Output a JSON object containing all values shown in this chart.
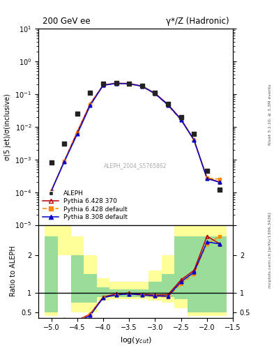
{
  "title_left": "200 GeV ee",
  "title_right": "γ*/Z (Hadronic)",
  "ylabel_main": "σ(5 jet)/σ(inclusive)",
  "ylabel_ratio": "Ratio to ALEPH",
  "xlabel": "log(y$_{cut}$)",
  "watermark": "ALEPH_2004_S5765862",
  "right_label": "Rivet 3.1.10, ≥ 3.3M events",
  "right_label2": "mcplots.cern.ch [arXiv:1306.3436]",
  "aleph_x": [
    -5.0,
    -4.75,
    -4.5,
    -4.25,
    -4.0,
    -3.75,
    -3.5,
    -3.25,
    -3.0,
    -2.75,
    -2.5,
    -2.25,
    -2.0,
    -1.75
  ],
  "aleph_y": [
    0.0008,
    0.003,
    0.025,
    0.11,
    0.21,
    0.22,
    0.21,
    0.18,
    0.11,
    0.05,
    0.02,
    0.006,
    0.00045,
    0.00012
  ],
  "py6_370_x": [
    -5.0,
    -4.75,
    -4.5,
    -4.25,
    -4.0,
    -3.75,
    -3.5,
    -3.25,
    -3.0,
    -2.75,
    -2.5,
    -2.25,
    -2.0,
    -1.75
  ],
  "py6_370_y": [
    0.00011,
    0.0009,
    0.007,
    0.05,
    0.19,
    0.215,
    0.21,
    0.175,
    0.105,
    0.048,
    0.017,
    0.004,
    0.00028,
    0.0002
  ],
  "py6_def_x": [
    -5.0,
    -4.75,
    -4.5,
    -4.25,
    -4.0,
    -3.75,
    -3.5,
    -3.25,
    -3.0,
    -2.75,
    -2.5,
    -2.25,
    -2.0,
    -1.75
  ],
  "py6_def_y": [
    0.00011,
    0.0009,
    0.0065,
    0.048,
    0.185,
    0.21,
    0.205,
    0.17,
    0.1,
    0.045,
    0.016,
    0.0038,
    0.00027,
    0.00025
  ],
  "py8_def_x": [
    -5.0,
    -4.75,
    -4.5,
    -4.25,
    -4.0,
    -3.75,
    -3.5,
    -3.25,
    -3.0,
    -2.75,
    -2.5,
    -2.25,
    -2.0,
    -1.75
  ],
  "py8_def_y": [
    0.00011,
    0.00085,
    0.006,
    0.045,
    0.185,
    0.21,
    0.205,
    0.172,
    0.102,
    0.046,
    0.0165,
    0.0039,
    0.00026,
    0.0002
  ],
  "ratio_x": [
    -5.0,
    -4.75,
    -4.5,
    -4.25,
    -4.0,
    -3.75,
    -3.5,
    -3.25,
    -3.0,
    -2.75,
    -2.5,
    -2.25,
    -2.0,
    -1.75
  ],
  "ratio_py6_370": [
    0.14,
    0.3,
    0.28,
    0.45,
    0.9,
    0.98,
    1.0,
    0.97,
    0.95,
    0.96,
    1.35,
    1.6,
    2.5,
    2.3
  ],
  "ratio_py6_def": [
    0.14,
    0.3,
    0.26,
    0.44,
    0.88,
    0.955,
    0.976,
    0.944,
    0.909,
    0.9,
    1.25,
    1.5,
    2.3,
    2.5
  ],
  "ratio_py8_def": [
    0.14,
    0.28,
    0.24,
    0.41,
    0.88,
    0.955,
    0.976,
    0.956,
    0.927,
    0.92,
    1.3,
    1.55,
    2.35,
    2.3
  ],
  "band_x_edges": [
    -5.125,
    -4.875,
    -4.625,
    -4.375,
    -4.125,
    -3.875,
    -3.625,
    -3.375,
    -3.125,
    -2.875,
    -2.625,
    -2.375,
    -2.125,
    -1.875,
    -1.625
  ],
  "green_lo": [
    0.5,
    2.5,
    0.75,
    0.75,
    0.9,
    0.9,
    0.9,
    0.9,
    0.9,
    0.9,
    0.85,
    0.5,
    0.5,
    0.5
  ],
  "green_hi": [
    2.5,
    2.5,
    2.0,
    1.5,
    1.15,
    1.1,
    1.1,
    1.1,
    1.3,
    1.5,
    2.5,
    2.5,
    2.5,
    2.5
  ],
  "yellow_lo": [
    0.4,
    2.0,
    0.5,
    0.5,
    0.8,
    0.85,
    0.85,
    0.85,
    0.8,
    0.75,
    0.6,
    0.4,
    0.4,
    0.4
  ],
  "yellow_hi": [
    3.0,
    3.0,
    2.5,
    2.0,
    1.4,
    1.3,
    1.3,
    1.3,
    1.6,
    2.0,
    3.0,
    3.0,
    3.0,
    3.0
  ],
  "color_aleph": "#222222",
  "color_py6_370": "#bb0000",
  "color_py6_def": "#ff8800",
  "color_py8_def": "#0000cc",
  "xlim": [
    -5.25,
    -1.5
  ],
  "ylim_main": [
    1e-05,
    10
  ],
  "ylim_ratio": [
    0.35,
    2.8
  ],
  "ratio_yticks": [
    0.5,
    1.0,
    2.0
  ],
  "legend_labels": [
    "ALEPH",
    "Pythia 6.428 370",
    "Pythia 6.428 default",
    "Pythia 8.308 default"
  ]
}
